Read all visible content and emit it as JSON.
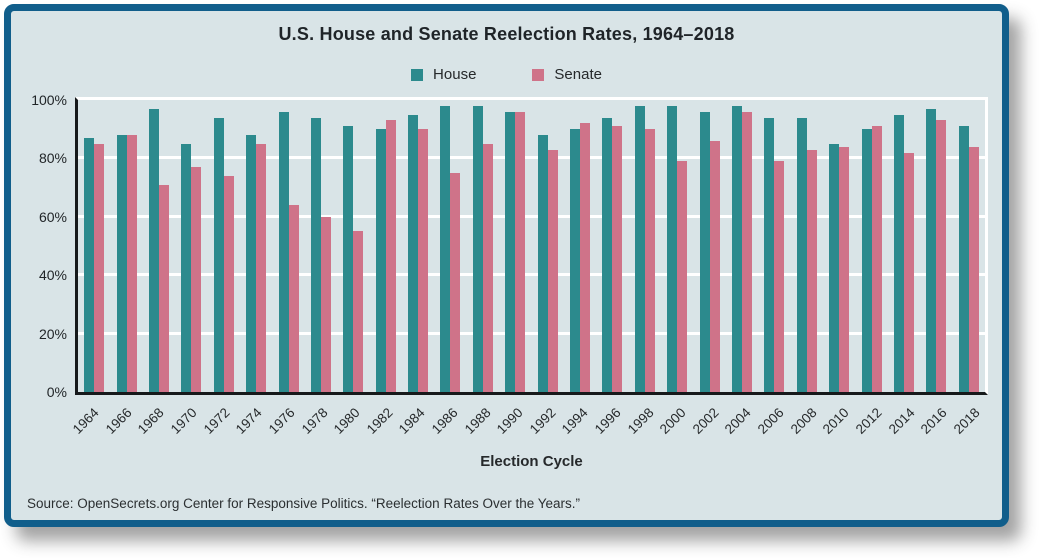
{
  "card": {
    "source": "Source: OpenSecrets.org Center for Responsive Politics. “Reelection Rates Over the Years.”"
  },
  "colors": {
    "card_background": "#d9e4e7",
    "card_border": "#115e8b",
    "house_bar": "#2c8a8d",
    "senate_bar": "#cf7389",
    "gridline": "#ffffff",
    "axis": "#16191b",
    "text": "#26292b"
  },
  "chart_data": {
    "type": "bar",
    "title": "U.S. House and Senate Reelection Rates, 1964–2018",
    "xlabel": "Election Cycle",
    "ylabel": "",
    "ylim": [
      0,
      100
    ],
    "yticks": [
      {
        "value": 0,
        "label": "0%"
      },
      {
        "value": 20,
        "label": "20%"
      },
      {
        "value": 40,
        "label": "40%"
      },
      {
        "value": 60,
        "label": "60%"
      },
      {
        "value": 80,
        "label": "80%"
      },
      {
        "value": 100,
        "label": "100%"
      }
    ],
    "grid": true,
    "legend_position": "top",
    "categories": [
      "1964",
      "1966",
      "1968",
      "1970",
      "1972",
      "1974",
      "1976",
      "1978",
      "1980",
      "1982",
      "1984",
      "1986",
      "1988",
      "1990",
      "1992",
      "1994",
      "1996",
      "1998",
      "2000",
      "2002",
      "2004",
      "2006",
      "2008",
      "2010",
      "2012",
      "2014",
      "2016",
      "2018"
    ],
    "series": [
      {
        "name": "House",
        "color": "#2c8a8d",
        "values": [
          87,
          88,
          97,
          85,
          94,
          88,
          96,
          94,
          91,
          90,
          95,
          98,
          98,
          96,
          88,
          90,
          94,
          98,
          98,
          96,
          98,
          94,
          94,
          85,
          90,
          95,
          97,
          91
        ]
      },
      {
        "name": "Senate",
        "color": "#cf7389",
        "values": [
          85,
          88,
          71,
          77,
          74,
          85,
          64,
          60,
          55,
          93,
          90,
          75,
          85,
          96,
          83,
          92,
          91,
          90,
          79,
          86,
          96,
          79,
          83,
          84,
          91,
          82,
          93,
          84
        ]
      }
    ]
  }
}
